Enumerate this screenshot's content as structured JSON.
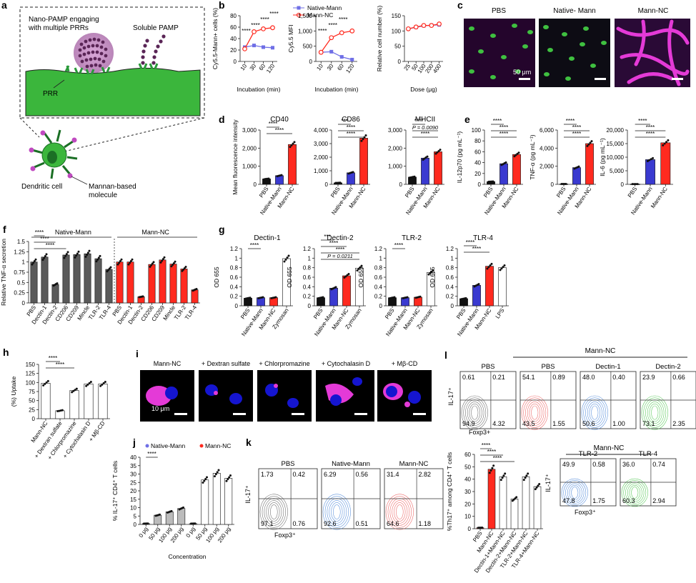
{
  "colors": {
    "gray": "#5a5a5a",
    "red": "#ff2a1f",
    "blue": "#3a3ad0",
    "lightblue": "#6f6fe6",
    "green": "#3fc040",
    "magenta": "#e43ad7",
    "darkgreen": "#14601a"
  },
  "panel_a": {
    "letter": "a",
    "nano_label": "Nano-PAMP engaging\nwith multiple PRRs",
    "soluble_label": "Soluble PAMP",
    "prr_label": "PRR",
    "dc_label": "Dendritic cell",
    "mannan_label": "Mannan-based\nmolecule"
  },
  "chart_data": [
    {
      "id": "b1",
      "panel": "b",
      "type": "line",
      "legend": [
        "Native-Mann",
        "Mann-NC"
      ],
      "xlabel": "Incubation (min)",
      "ylabel": "Cy5.5-Mann+ cells (%)",
      "categories": [
        "10",
        "30",
        "60",
        "120"
      ],
      "ylim": [
        0,
        80
      ],
      "yticks": [
        0,
        20,
        40,
        60,
        80
      ],
      "series": [
        {
          "name": "Native-Mann",
          "values": [
            25,
            28,
            25,
            24
          ]
        },
        {
          "name": "Mann-NC",
          "values": [
            22,
            52,
            57,
            59
          ]
        }
      ],
      "annotations": [
        "****",
        "****",
        "****",
        "****"
      ]
    },
    {
      "id": "b2",
      "panel": "b",
      "type": "line",
      "xlabel": "Incubation (min)",
      "ylabel": "Cy5.5 MFI",
      "categories": [
        "10",
        "30",
        "60",
        "120"
      ],
      "ylim": [
        0,
        1500
      ],
      "yticks": [
        0,
        500,
        1000,
        1500
      ],
      "series": [
        {
          "name": "Native-Mann",
          "values": [
            300,
            320,
            150,
            60
          ]
        },
        {
          "name": "Mann-NC",
          "values": [
            300,
            780,
            940,
            1000
          ]
        }
      ],
      "annotations": [
        "****",
        "****",
        "****"
      ]
    },
    {
      "id": "b3",
      "panel": "b",
      "type": "line",
      "xlabel": "Dose (μg)",
      "ylabel": "Relative cell number (%)",
      "categories": [
        "25",
        "50",
        "100",
        "200",
        "400"
      ],
      "ylim": [
        0,
        150
      ],
      "yticks": [
        0,
        50,
        100,
        150
      ],
      "series": [
        {
          "name": "Native-Mann",
          "values": [
            107,
            112,
            117,
            119,
            120
          ]
        },
        {
          "name": "Mann-NC",
          "values": [
            107,
            113,
            118,
            118,
            123
          ]
        }
      ]
    },
    {
      "id": "d1",
      "panel": "d",
      "type": "bar",
      "title": "CD40",
      "ylabel": "Mean fluorescence intensity",
      "categories": [
        "PBS",
        "Native-Mann",
        "Mann-NC"
      ],
      "ylim": [
        0,
        3000
      ],
      "yticks": [
        0,
        1000,
        2000,
        3000
      ],
      "values": [
        300,
        480,
        2200
      ],
      "annotations": [
        "****",
        "****"
      ]
    },
    {
      "id": "d2",
      "panel": "d",
      "type": "bar",
      "title": "CD86",
      "categories": [
        "PBS",
        "Native-Mann",
        "Mann-NC"
      ],
      "ylim": [
        0,
        4000
      ],
      "yticks": [
        0,
        1000,
        2000,
        3000,
        4000
      ],
      "values": [
        110,
        850,
        3400
      ],
      "annotations": [
        "***",
        "****",
        "****"
      ]
    },
    {
      "id": "d3",
      "panel": "d",
      "type": "bar",
      "title": "MHCII",
      "categories": [
        "PBS",
        "Native-Mann",
        "Mann-NC"
      ],
      "ylim": [
        0,
        3000
      ],
      "yticks": [
        0,
        1000,
        2000,
        3000
      ],
      "values": [
        400,
        1450,
        1800
      ],
      "annotations": [
        "****",
        "P = 0.0090",
        "****"
      ]
    },
    {
      "id": "e1",
      "panel": "e",
      "type": "bar",
      "ylabel": "IL-12p70 (pg mL⁻¹)",
      "categories": [
        "PBS",
        "Native-Mann",
        "Mann-NC"
      ],
      "ylim": [
        0,
        100
      ],
      "yticks": [
        0,
        20,
        40,
        60,
        80,
        100
      ],
      "values": [
        5,
        38,
        55
      ],
      "annotations": [
        "****",
        "****",
        "****"
      ]
    },
    {
      "id": "e2",
      "panel": "e",
      "type": "bar",
      "ylabel": "TNF-α (pg mL⁻¹)",
      "categories": [
        "PBS",
        "Native-Mann",
        "Mann-NC"
      ],
      "ylim": [
        0,
        6000
      ],
      "yticks": [
        0,
        2000,
        4000,
        6000
      ],
      "values": [
        40,
        1850,
        4500
      ],
      "annotations": [
        "****",
        "****",
        "****"
      ]
    },
    {
      "id": "e3",
      "panel": "e",
      "type": "bar",
      "ylabel": "IL-6 (pg mL⁻¹)",
      "categories": [
        "PBS",
        "Native-Mann",
        "Mann-NC"
      ],
      "ylim": [
        0,
        20000
      ],
      "yticks": [
        0,
        5000,
        10000,
        15000,
        20000
      ],
      "values": [
        100,
        9100,
        15300
      ],
      "annotations": [
        "****",
        "****",
        "****"
      ]
    },
    {
      "id": "f",
      "panel": "f",
      "type": "bar",
      "ylabel": "Relative TNF-α secretion",
      "groups": [
        "Native-Mann",
        "Mann-NC"
      ],
      "categories": [
        "PBS",
        "Dectin-1",
        "Dectin-2",
        "CD206",
        "CD209",
        "Mincle",
        "TLR-2",
        "TLR-4",
        "PBS",
        "Dectin-1",
        "Dectin-2",
        "CD206",
        "CD209",
        "Mincle",
        "TLR-2",
        "TLR-4"
      ],
      "ylim": [
        0,
        1.5
      ],
      "yticks": [
        0,
        0.25,
        0.5,
        0.75,
        1.0,
        1.25,
        1.5
      ],
      "values": [
        1.0,
        1.12,
        0.45,
        1.17,
        1.18,
        1.2,
        1.08,
        0.82,
        1.0,
        1.0,
        0.15,
        0.94,
        1.05,
        0.95,
        0.83,
        0.32
      ],
      "annotations": [
        "****",
        "****",
        "****"
      ]
    },
    {
      "id": "g1",
      "panel": "g",
      "type": "bar",
      "title": "Dectin-1",
      "ylabel": "OD 655",
      "categories": [
        "PBS",
        "Native-Mann",
        "Mann-NC",
        "Zymosan"
      ],
      "ylim": [
        0,
        1.2
      ],
      "yticks": [
        0,
        0.2,
        0.4,
        0.6,
        0.8,
        1.0,
        1.2
      ],
      "values": [
        0.16,
        0.17,
        0.17,
        0.99
      ],
      "annotations": [
        "****"
      ]
    },
    {
      "id": "g2",
      "panel": "g",
      "type": "bar",
      "title": "Dectin-2",
      "ylabel": "OD 655",
      "categories": [
        "PBS",
        "Native-Mann",
        "Mann-NC",
        "Zymosan"
      ],
      "ylim": [
        0,
        1.2
      ],
      "yticks": [
        0,
        0.2,
        0.4,
        0.6,
        0.8,
        1.0,
        1.2
      ],
      "values": [
        0.17,
        0.37,
        0.63,
        0.79
      ],
      "annotations": [
        "***",
        "****",
        "****",
        "P = 0.0211"
      ]
    },
    {
      "id": "g3",
      "panel": "g",
      "type": "bar",
      "title": "TLR-2",
      "ylabel": "OD 655",
      "categories": [
        "PBS",
        "Native-Mann",
        "Mann-NC",
        "Zymosan"
      ],
      "ylim": [
        0,
        1.2
      ],
      "yticks": [
        0,
        0.2,
        0.4,
        0.6,
        0.8,
        1.0,
        1.2
      ],
      "values": [
        0.17,
        0.17,
        0.18,
        0.7
      ],
      "annotations": [
        "****"
      ]
    },
    {
      "id": "g4",
      "panel": "g",
      "type": "bar",
      "title": "TLR-4",
      "ylabel": "OD 655",
      "categories": [
        "PBS",
        "Native-Mann",
        "Mann-NC",
        "LPS"
      ],
      "ylim": [
        0,
        1.2
      ],
      "yticks": [
        0,
        0.2,
        0.4,
        0.6,
        0.8,
        1.0,
        1.2
      ],
      "values": [
        0.15,
        0.43,
        0.83,
        0.8
      ],
      "annotations": [
        "****",
        "****"
      ]
    },
    {
      "id": "h",
      "panel": "h",
      "type": "bar",
      "ylabel": "(%) Uptake",
      "categories": [
        "Mann-NC",
        "+ Dextran sulfate",
        "+ Chlorpromazine",
        "+ Cytochalasin D",
        "+ Mβ-CD"
      ],
      "ylim": [
        0,
        150
      ],
      "yticks": [
        0,
        25,
        50,
        75,
        100,
        125,
        150
      ],
      "values": [
        98,
        22,
        78,
        96,
        96
      ],
      "annotations": [
        "****",
        "****"
      ]
    },
    {
      "id": "j",
      "panel": "j",
      "type": "bar",
      "legend": [
        "Native-Mann",
        "Mann-NC"
      ],
      "xlabel": "Concentration",
      "ylabel": "% IL-17⁺ CD4⁺ T cells",
      "categories": [
        "0 μg",
        "50 μg",
        "100 μg",
        "200 μg",
        "0 μg",
        "50 μg",
        "100 μg",
        "200 μg"
      ],
      "ylim": [
        0,
        40
      ],
      "yticks": [
        0,
        5,
        10,
        15,
        20,
        25,
        30,
        35,
        40
      ],
      "values": [
        0.5,
        5.5,
        7.5,
        9.5,
        0.5,
        26.5,
        30.5,
        27.5
      ],
      "annotations": [
        "****"
      ]
    },
    {
      "id": "l2",
      "panel": "l",
      "type": "bar",
      "ylabel": "%Th17⁺ among CD4⁺ T cells",
      "categories": [
        "PBS",
        "Mann-NC",
        "Dectin-1+Mann-NC",
        "Dectin-2+Mann-NC",
        "TLR-2+Mann-NC",
        "TLR-4+Mann-NC"
      ],
      "ylim": [
        0,
        60
      ],
      "yticks": [
        0,
        10,
        20,
        30,
        40,
        50,
        60
      ],
      "values": [
        0.8,
        48,
        42,
        24,
        42,
        34
      ],
      "annotations": [
        "****",
        "****",
        "****"
      ]
    }
  ],
  "panel_c": {
    "letter": "c",
    "titles": [
      "PBS",
      "Native- Mann",
      "Mann-NC"
    ],
    "scalebar": "50 μm"
  },
  "panel_i": {
    "letter": "i",
    "titles": [
      "Mann-NC",
      "+ Dextran sulfate",
      "+ Chlorpromazine",
      "+ Cytochalasin D",
      "+ Mβ-CD"
    ],
    "scalebar": "10 μm"
  },
  "panel_k": {
    "letter": "k",
    "xlabel": "Foxp3⁺",
    "ylabel": "IL-17⁺",
    "plots": [
      {
        "title": "PBS",
        "q": [
          "1.73",
          "0.42",
          "97.1",
          "0.76"
        ]
      },
      {
        "title": "Native-Mann",
        "q": [
          "6.29",
          "0.56",
          "92.6",
          "0.51"
        ]
      },
      {
        "title": "Mann-NC",
        "q": [
          "31.4",
          "2.82",
          "64.6",
          "1.18"
        ]
      }
    ]
  },
  "panel_l": {
    "letter": "l",
    "group_label": "Mann-NC",
    "xlabel": "Foxp3+",
    "ylabel": "IL-17⁺",
    "xlabel2": "Foxp3⁺",
    "plots": [
      {
        "title": "PBS",
        "q": [
          "0.61",
          "0.21",
          "94.9",
          "4.32"
        ]
      },
      {
        "title": "PBS",
        "q": [
          "54.1",
          "0.89",
          "43.5",
          "1.55"
        ]
      },
      {
        "title": "Dectin-1",
        "q": [
          "48.0",
          "0.40",
          "50.6",
          "1.00"
        ]
      },
      {
        "title": "Dectin-2",
        "q": [
          "23.9",
          "0.66",
          "73.1",
          "2.35"
        ]
      },
      {
        "title": "TLR-2",
        "q": [
          "49.9",
          "0.58",
          "47.8",
          "1.75"
        ]
      },
      {
        "title": "TLR-4",
        "q": [
          "36.0",
          "0.74",
          "60.3",
          "2.94"
        ]
      }
    ]
  },
  "letters": {
    "b": "b",
    "d": "d",
    "e": "e",
    "f": "f",
    "g": "g",
    "h": "h",
    "j": "j"
  }
}
